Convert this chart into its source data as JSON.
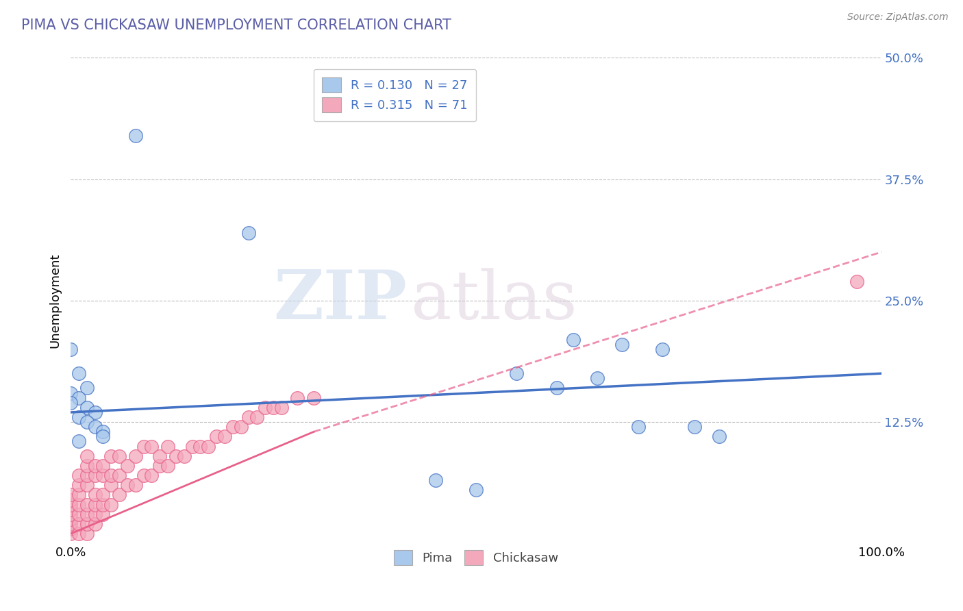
{
  "title": "PIMA VS CHICKASAW UNEMPLOYMENT CORRELATION CHART",
  "source": "Source: ZipAtlas.com",
  "ylabel": "Unemployment",
  "xlim": [
    0,
    1.0
  ],
  "ylim": [
    0,
    0.5
  ],
  "xtick_labels": [
    "0.0%",
    "100.0%"
  ],
  "ytick_labels_right": [
    "50.0%",
    "37.5%",
    "25.0%",
    "12.5%"
  ],
  "ytick_vals_right": [
    0.5,
    0.375,
    0.25,
    0.125
  ],
  "legend_bottom_labels": [
    "Pima",
    "Chickasaw"
  ],
  "pima_R": "0.130",
  "pima_N": "27",
  "chickasaw_R": "0.315",
  "chickasaw_N": "71",
  "pima_color": "#A8C8EC",
  "chickasaw_color": "#F4A8BC",
  "pima_line_color": "#4472C4",
  "chickasaw_line_color": "#E8608A",
  "background_color": "#FFFFFF",
  "grid_color": "#BBBBBB",
  "title_color": "#5B5EA6",
  "watermark_zip": "ZIP",
  "watermark_atlas": "atlas",
  "pima_scatter_x": [
    0.08,
    0.0,
    0.01,
    0.02,
    0.0,
    0.01,
    0.0,
    0.02,
    0.03,
    0.01,
    0.02,
    0.03,
    0.04,
    0.04,
    0.01,
    0.22,
    0.45,
    0.55,
    0.62,
    0.68,
    0.7,
    0.73,
    0.77,
    0.8,
    0.6,
    0.65,
    0.5
  ],
  "pima_scatter_y": [
    0.42,
    0.2,
    0.175,
    0.16,
    0.155,
    0.15,
    0.145,
    0.14,
    0.135,
    0.13,
    0.125,
    0.12,
    0.115,
    0.11,
    0.105,
    0.32,
    0.065,
    0.175,
    0.21,
    0.205,
    0.12,
    0.2,
    0.12,
    0.11,
    0.16,
    0.17,
    0.055
  ],
  "chickasaw_scatter_x": [
    0.0,
    0.0,
    0.0,
    0.0,
    0.0,
    0.0,
    0.0,
    0.0,
    0.0,
    0.01,
    0.01,
    0.01,
    0.01,
    0.01,
    0.01,
    0.01,
    0.02,
    0.02,
    0.02,
    0.02,
    0.02,
    0.02,
    0.02,
    0.02,
    0.03,
    0.03,
    0.03,
    0.03,
    0.03,
    0.03,
    0.04,
    0.04,
    0.04,
    0.04,
    0.04,
    0.05,
    0.05,
    0.05,
    0.05,
    0.06,
    0.06,
    0.06,
    0.07,
    0.07,
    0.08,
    0.08,
    0.09,
    0.09,
    0.1,
    0.1,
    0.11,
    0.11,
    0.12,
    0.12,
    0.13,
    0.14,
    0.15,
    0.16,
    0.17,
    0.18,
    0.19,
    0.2,
    0.21,
    0.22,
    0.23,
    0.24,
    0.25,
    0.26,
    0.28,
    0.3,
    0.97
  ],
  "chickasaw_scatter_y": [
    0.01,
    0.015,
    0.02,
    0.025,
    0.03,
    0.035,
    0.04,
    0.045,
    0.05,
    0.01,
    0.02,
    0.03,
    0.04,
    0.05,
    0.06,
    0.07,
    0.01,
    0.02,
    0.03,
    0.04,
    0.06,
    0.07,
    0.08,
    0.09,
    0.02,
    0.03,
    0.04,
    0.05,
    0.07,
    0.08,
    0.03,
    0.04,
    0.05,
    0.07,
    0.08,
    0.04,
    0.06,
    0.07,
    0.09,
    0.05,
    0.07,
    0.09,
    0.06,
    0.08,
    0.06,
    0.09,
    0.07,
    0.1,
    0.07,
    0.1,
    0.08,
    0.09,
    0.08,
    0.1,
    0.09,
    0.09,
    0.1,
    0.1,
    0.1,
    0.11,
    0.11,
    0.12,
    0.12,
    0.13,
    0.13,
    0.14,
    0.14,
    0.14,
    0.15,
    0.15,
    0.27
  ],
  "pima_trend_x": [
    0.0,
    1.0
  ],
  "pima_trend_y": [
    0.135,
    0.175
  ],
  "chickasaw_trend_x": [
    0.0,
    0.3
  ],
  "chickasaw_trend_y": [
    0.01,
    0.115
  ]
}
